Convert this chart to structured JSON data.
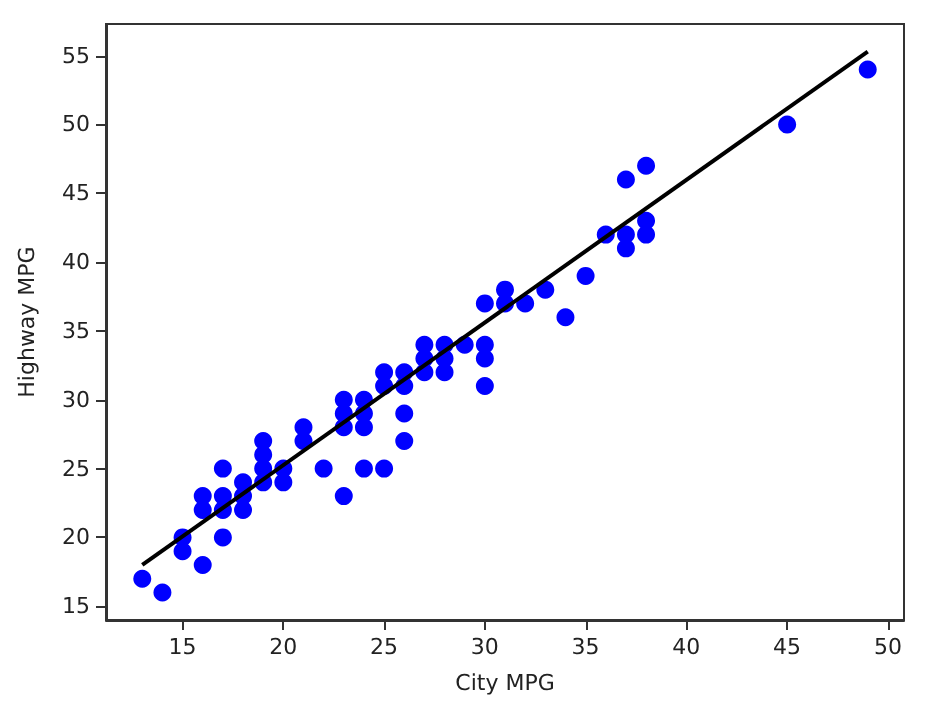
{
  "chart_data": {
    "type": "scatter",
    "xlabel": "City MPG",
    "ylabel": "Highway MPG",
    "xlim": [
      11.2,
      50.8
    ],
    "xticks": [
      15,
      20,
      25,
      30,
      35,
      40,
      45,
      50
    ],
    "ylim": [
      14,
      57.3
    ],
    "yticks": [
      15,
      20,
      25,
      30,
      35,
      40,
      45,
      50,
      55
    ],
    "grid": false,
    "marker": "circle",
    "series": [
      {
        "color": "#0000ff",
        "x": [
          13,
          14,
          15,
          15,
          16,
          16,
          16,
          17,
          17,
          17,
          17,
          18,
          18,
          18,
          19,
          19,
          19,
          19,
          20,
          20,
          21,
          21,
          22,
          23,
          23,
          23,
          23,
          24,
          24,
          24,
          24,
          25,
          25,
          25,
          26,
          26,
          26,
          26,
          27,
          27,
          27,
          28,
          28,
          28,
          29,
          30,
          30,
          30,
          30,
          31,
          31,
          32,
          33,
          34,
          35,
          36,
          37,
          37,
          37,
          38,
          38,
          38,
          45,
          49
        ],
        "values": [
          17,
          16,
          20,
          19,
          18,
          23,
          22,
          25,
          23,
          22,
          20,
          24,
          23,
          22,
          27,
          26,
          25,
          24,
          25,
          24,
          28,
          27,
          25,
          30,
          29,
          28,
          23,
          30,
          29,
          28,
          25,
          32,
          31,
          25,
          32,
          31,
          29,
          27,
          34,
          33,
          32,
          34,
          33,
          32,
          34,
          37,
          34,
          33,
          31,
          38,
          37,
          37,
          38,
          36,
          39,
          42,
          46,
          42,
          41,
          47,
          43,
          42,
          50,
          54
        ]
      },
      {
        "type": "line",
        "color": "#000000",
        "line_style": "solid",
        "marker": "none",
        "x": [
          13,
          49
        ],
        "values": [
          18,
          55.3
        ]
      }
    ]
  }
}
